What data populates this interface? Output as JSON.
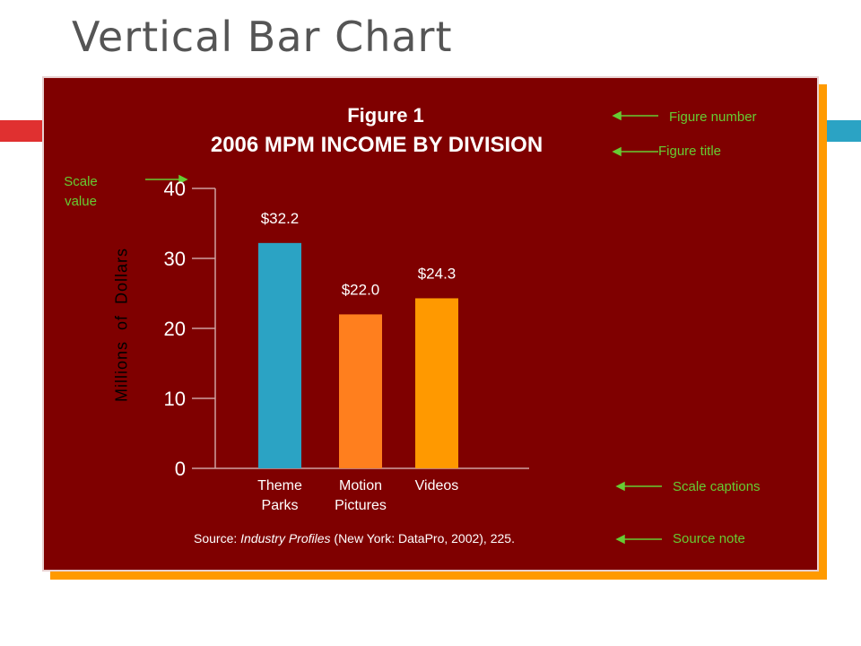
{
  "slide_title": "Vertical Bar Chart",
  "figure_number": "Figure 1",
  "figure_title": "2006 MPM INCOME BY DIVISION",
  "annotations": {
    "scale_value": "Scale value",
    "figure_number": "Figure number",
    "figure_title": "Figure title",
    "scale_captions": "Scale captions",
    "source_note": "Source note"
  },
  "source": {
    "prefix": "Source: ",
    "italic": "Industry Profiles",
    "suffix": " (New York: DataPro,  2002), 225."
  },
  "colors": {
    "panel": "#7f0000",
    "panel_shadow": "#ff9a00",
    "annotation": "#66cc33",
    "accent_left": "#e03030",
    "accent_right": "#2ba3c4"
  },
  "chart_data": {
    "type": "bar",
    "title": "2006 MPM INCOME BY DIVISION",
    "ylabel": "Millions  of  Dollars",
    "xlabel": "",
    "ylim": [
      0,
      40
    ],
    "yticks": [
      0,
      10,
      20,
      30,
      40
    ],
    "grid": false,
    "categories": [
      "Theme Parks",
      "Motion Pictures",
      "Videos"
    ],
    "category_lines": [
      [
        "Theme",
        "Parks"
      ],
      [
        "Motion",
        "Pictures"
      ],
      [
        "Videos"
      ]
    ],
    "values": [
      32.2,
      22.0,
      24.3
    ],
    "value_labels": [
      "$32.2",
      "$22.0",
      "$24.3"
    ],
    "bar_colors": [
      "#2ba3c4",
      "#ff7f1e",
      "#ff9900"
    ]
  }
}
